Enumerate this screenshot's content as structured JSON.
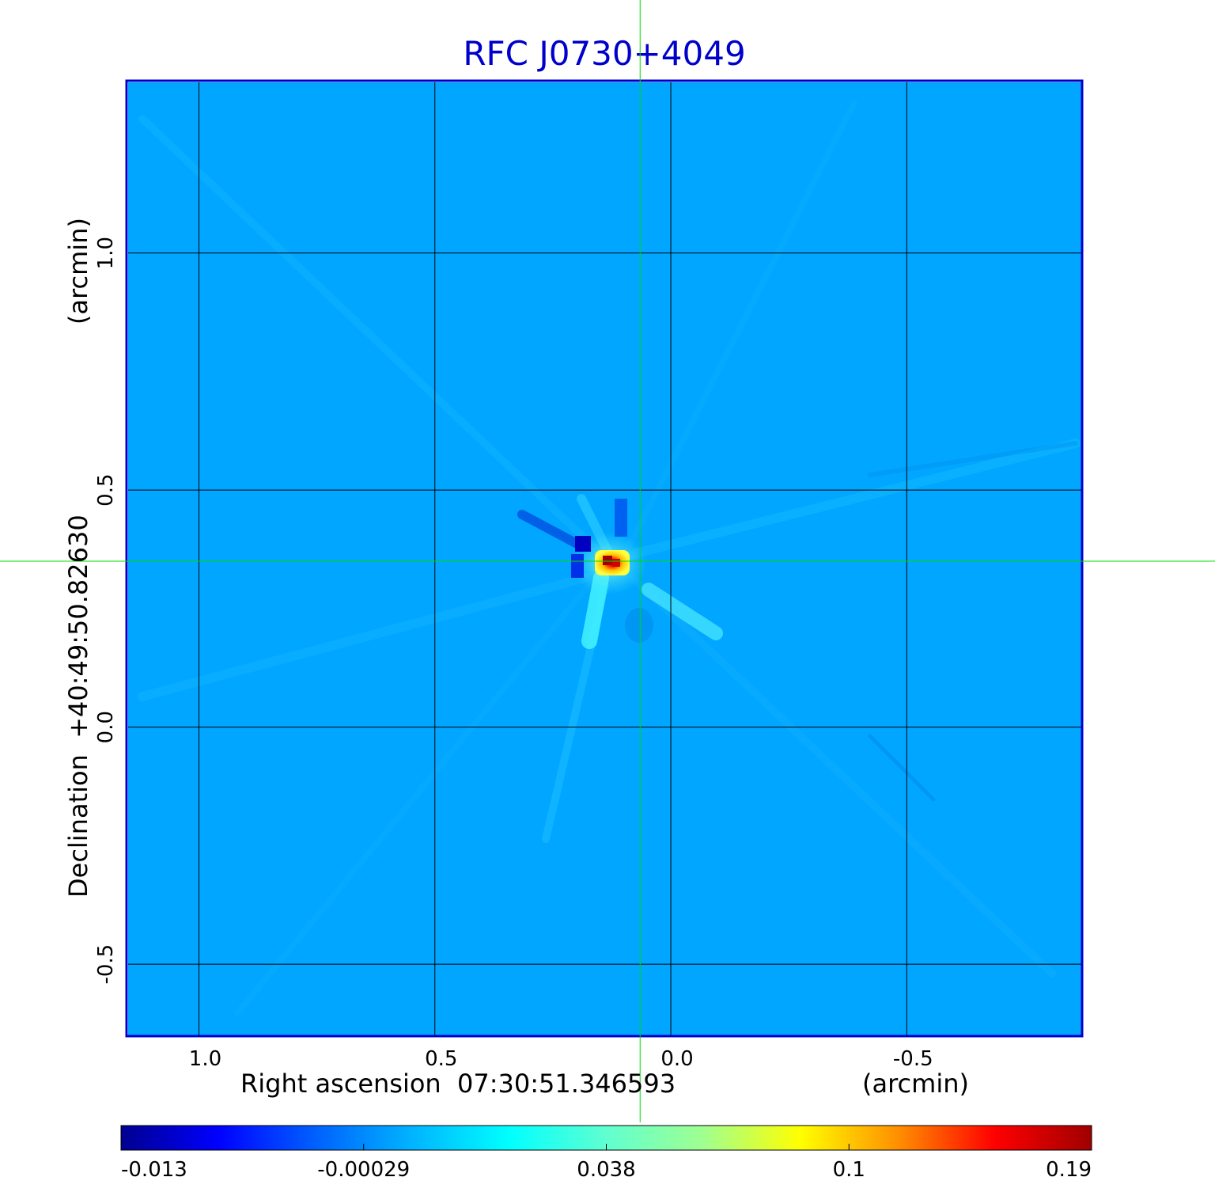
{
  "chart_data": {
    "type": "heatmap",
    "title": "RFC J0730+4049",
    "xlabel": "Right ascension  07:30:51.346593",
    "xunit": "(arcmin)",
    "ylabel": "Declination  +40:49:50.82630",
    "yunit": "(arcmin)",
    "xlim": [
      1.15,
      -0.87
    ],
    "ylim": [
      -0.65,
      1.36
    ],
    "x_ticks": [
      {
        "value": 1.0,
        "label": "1.0"
      },
      {
        "value": 0.5,
        "label": "0.5"
      },
      {
        "value": 0.0,
        "label": "0.0"
      },
      {
        "value": -0.5,
        "label": "-0.5"
      }
    ],
    "y_ticks": [
      {
        "value": 1.0,
        "label": "1.0"
      },
      {
        "value": 0.5,
        "label": "0.5"
      },
      {
        "value": 0.0,
        "label": "0.0"
      },
      {
        "value": -0.5,
        "label": "-0.5"
      }
    ],
    "grid": true,
    "crosshair": {
      "x": 0.065,
      "y": 0.35
    },
    "source_peak": {
      "x": 0.06,
      "y": 0.345,
      "value": 0.19
    },
    "colorbar": {
      "ticks": [
        {
          "value": -0.013,
          "label": "-0.013"
        },
        {
          "value": -0.00029,
          "label": "-0.00029"
        },
        {
          "value": 0.038,
          "label": "0.038"
        },
        {
          "value": 0.1,
          "label": "0.1"
        },
        {
          "value": 0.19,
          "label": "0.19"
        }
      ],
      "colors": [
        "#000090",
        "#0000ff",
        "#0060ff",
        "#00b4ff",
        "#00ffff",
        "#60ffd0",
        "#a0ff90",
        "#ffff00",
        "#ff9000",
        "#ff0000",
        "#a00000"
      ]
    },
    "colors": {
      "title": "#0000cc",
      "frame": "#0000cc",
      "background_map": "#00a6ff",
      "grid": "#000000",
      "crosshair": "#00dd00"
    }
  }
}
